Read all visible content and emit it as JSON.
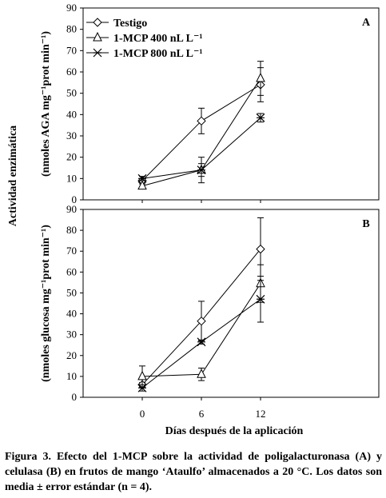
{
  "figure": {
    "ylabel_main": "Actividad enzimática",
    "xlabel": "Días después de la aplicación",
    "caption": "Figura 3. Efecto del 1-MCP sobre la actividad de poligalacturonasa (A) y celulasa (B) en frutos de mango ‘Ataulfo’ almacenados a 20 °C. Los datos son media ± error estándar (n = 4).",
    "series_colors": [
      "#000000",
      "#000000",
      "#000000"
    ]
  },
  "chart_data": [
    {
      "type": "line",
      "panel_label": "A",
      "ylabel": "(nmoles AGA mg⁻¹prot min⁻¹)",
      "x": [
        0,
        6,
        12
      ],
      "xlim": [
        -6,
        24
      ],
      "ylim": [
        0,
        90
      ],
      "yticks": [
        0,
        10,
        20,
        30,
        40,
        50,
        60,
        70,
        80,
        90
      ],
      "legend_position": "top-left",
      "series": [
        {
          "name": "Testigo",
          "marker": "diamond",
          "values": [
            9,
            37,
            54
          ],
          "errors": [
            1,
            6,
            8
          ]
        },
        {
          "name": "1-MCP 400 nL L⁻¹",
          "marker": "triangle",
          "values": [
            6.5,
            14,
            57
          ],
          "errors": [
            1,
            3,
            8
          ]
        },
        {
          "name": "1-MCP 800 nL L⁻¹",
          "marker": "star",
          "values": [
            10,
            14,
            38.5
          ],
          "errors": [
            1,
            6,
            2
          ]
        }
      ]
    },
    {
      "type": "line",
      "panel_label": "B",
      "ylabel": "(nmoles glucosa mg⁻¹prot min⁻¹)",
      "x": [
        0,
        6,
        12
      ],
      "xlim": [
        -6,
        24
      ],
      "ylim": [
        0,
        90
      ],
      "yticks": [
        0,
        10,
        20,
        30,
        40,
        50,
        60,
        70,
        80,
        90
      ],
      "xticks": [
        0,
        6,
        12
      ],
      "series": [
        {
          "name": "Testigo",
          "marker": "diamond",
          "values": [
            6,
            36.5,
            71
          ],
          "errors": [
            1,
            9.5,
            15
          ]
        },
        {
          "name": "1-MCP 400 nL L⁻¹",
          "marker": "triangle",
          "values": [
            10,
            11,
            54.5
          ],
          "errors": [
            5,
            3,
            9
          ]
        },
        {
          "name": "1-MCP 800 nL L⁻¹",
          "marker": "star",
          "values": [
            4.5,
            26.5,
            47
          ],
          "errors": [
            1.5,
            1,
            11
          ]
        }
      ]
    }
  ]
}
